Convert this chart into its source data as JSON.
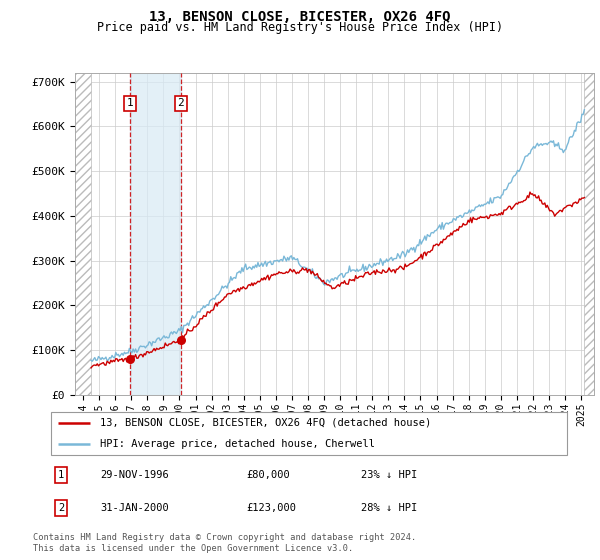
{
  "title": "13, BENSON CLOSE, BICESTER, OX26 4FQ",
  "subtitle": "Price paid vs. HM Land Registry's House Price Index (HPI)",
  "ylim": [
    0,
    720000
  ],
  "yticks": [
    0,
    100000,
    200000,
    300000,
    400000,
    500000,
    600000,
    700000
  ],
  "ytick_labels": [
    "£0",
    "£100K",
    "£200K",
    "£300K",
    "£400K",
    "£500K",
    "£600K",
    "£700K"
  ],
  "hpi_color": "#7ab8d8",
  "price_color": "#cc0000",
  "marker_color": "#cc0000",
  "purchase1_date": 1996.91,
  "purchase1_price": 80000,
  "purchase2_date": 2000.08,
  "purchase2_price": 123000,
  "legend_line1": "13, BENSON CLOSE, BICESTER, OX26 4FQ (detached house)",
  "legend_line2": "HPI: Average price, detached house, Cherwell",
  "table_rows": [
    {
      "num": "1",
      "date": "29-NOV-1996",
      "price": "£80,000",
      "pct": "23% ↓ HPI"
    },
    {
      "num": "2",
      "date": "31-JAN-2000",
      "price": "£123,000",
      "pct": "28% ↓ HPI"
    }
  ],
  "footnote": "Contains HM Land Registry data © Crown copyright and database right 2024.\nThis data is licensed under the Open Government Licence v3.0.",
  "xmin": 1993.5,
  "xmax": 2025.8,
  "hatch_left_end": 1994.5,
  "hatch_right_start": 2025.2
}
